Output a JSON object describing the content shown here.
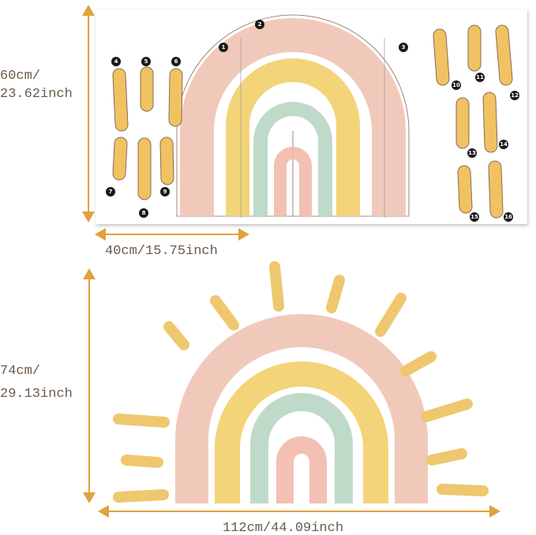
{
  "sheet": {
    "height_label": [
      "60cm/",
      "23.62inch"
    ],
    "width_label": "40cm/15.75inch",
    "piece_numbers": [
      1,
      2,
      3,
      4,
      5,
      6,
      7,
      8,
      9,
      10,
      11,
      12,
      13,
      14,
      15,
      16
    ]
  },
  "assembled": {
    "height_label": [
      "74cm/",
      "29.13inch"
    ],
    "width_label": "112cm/44.09inch"
  }
}
